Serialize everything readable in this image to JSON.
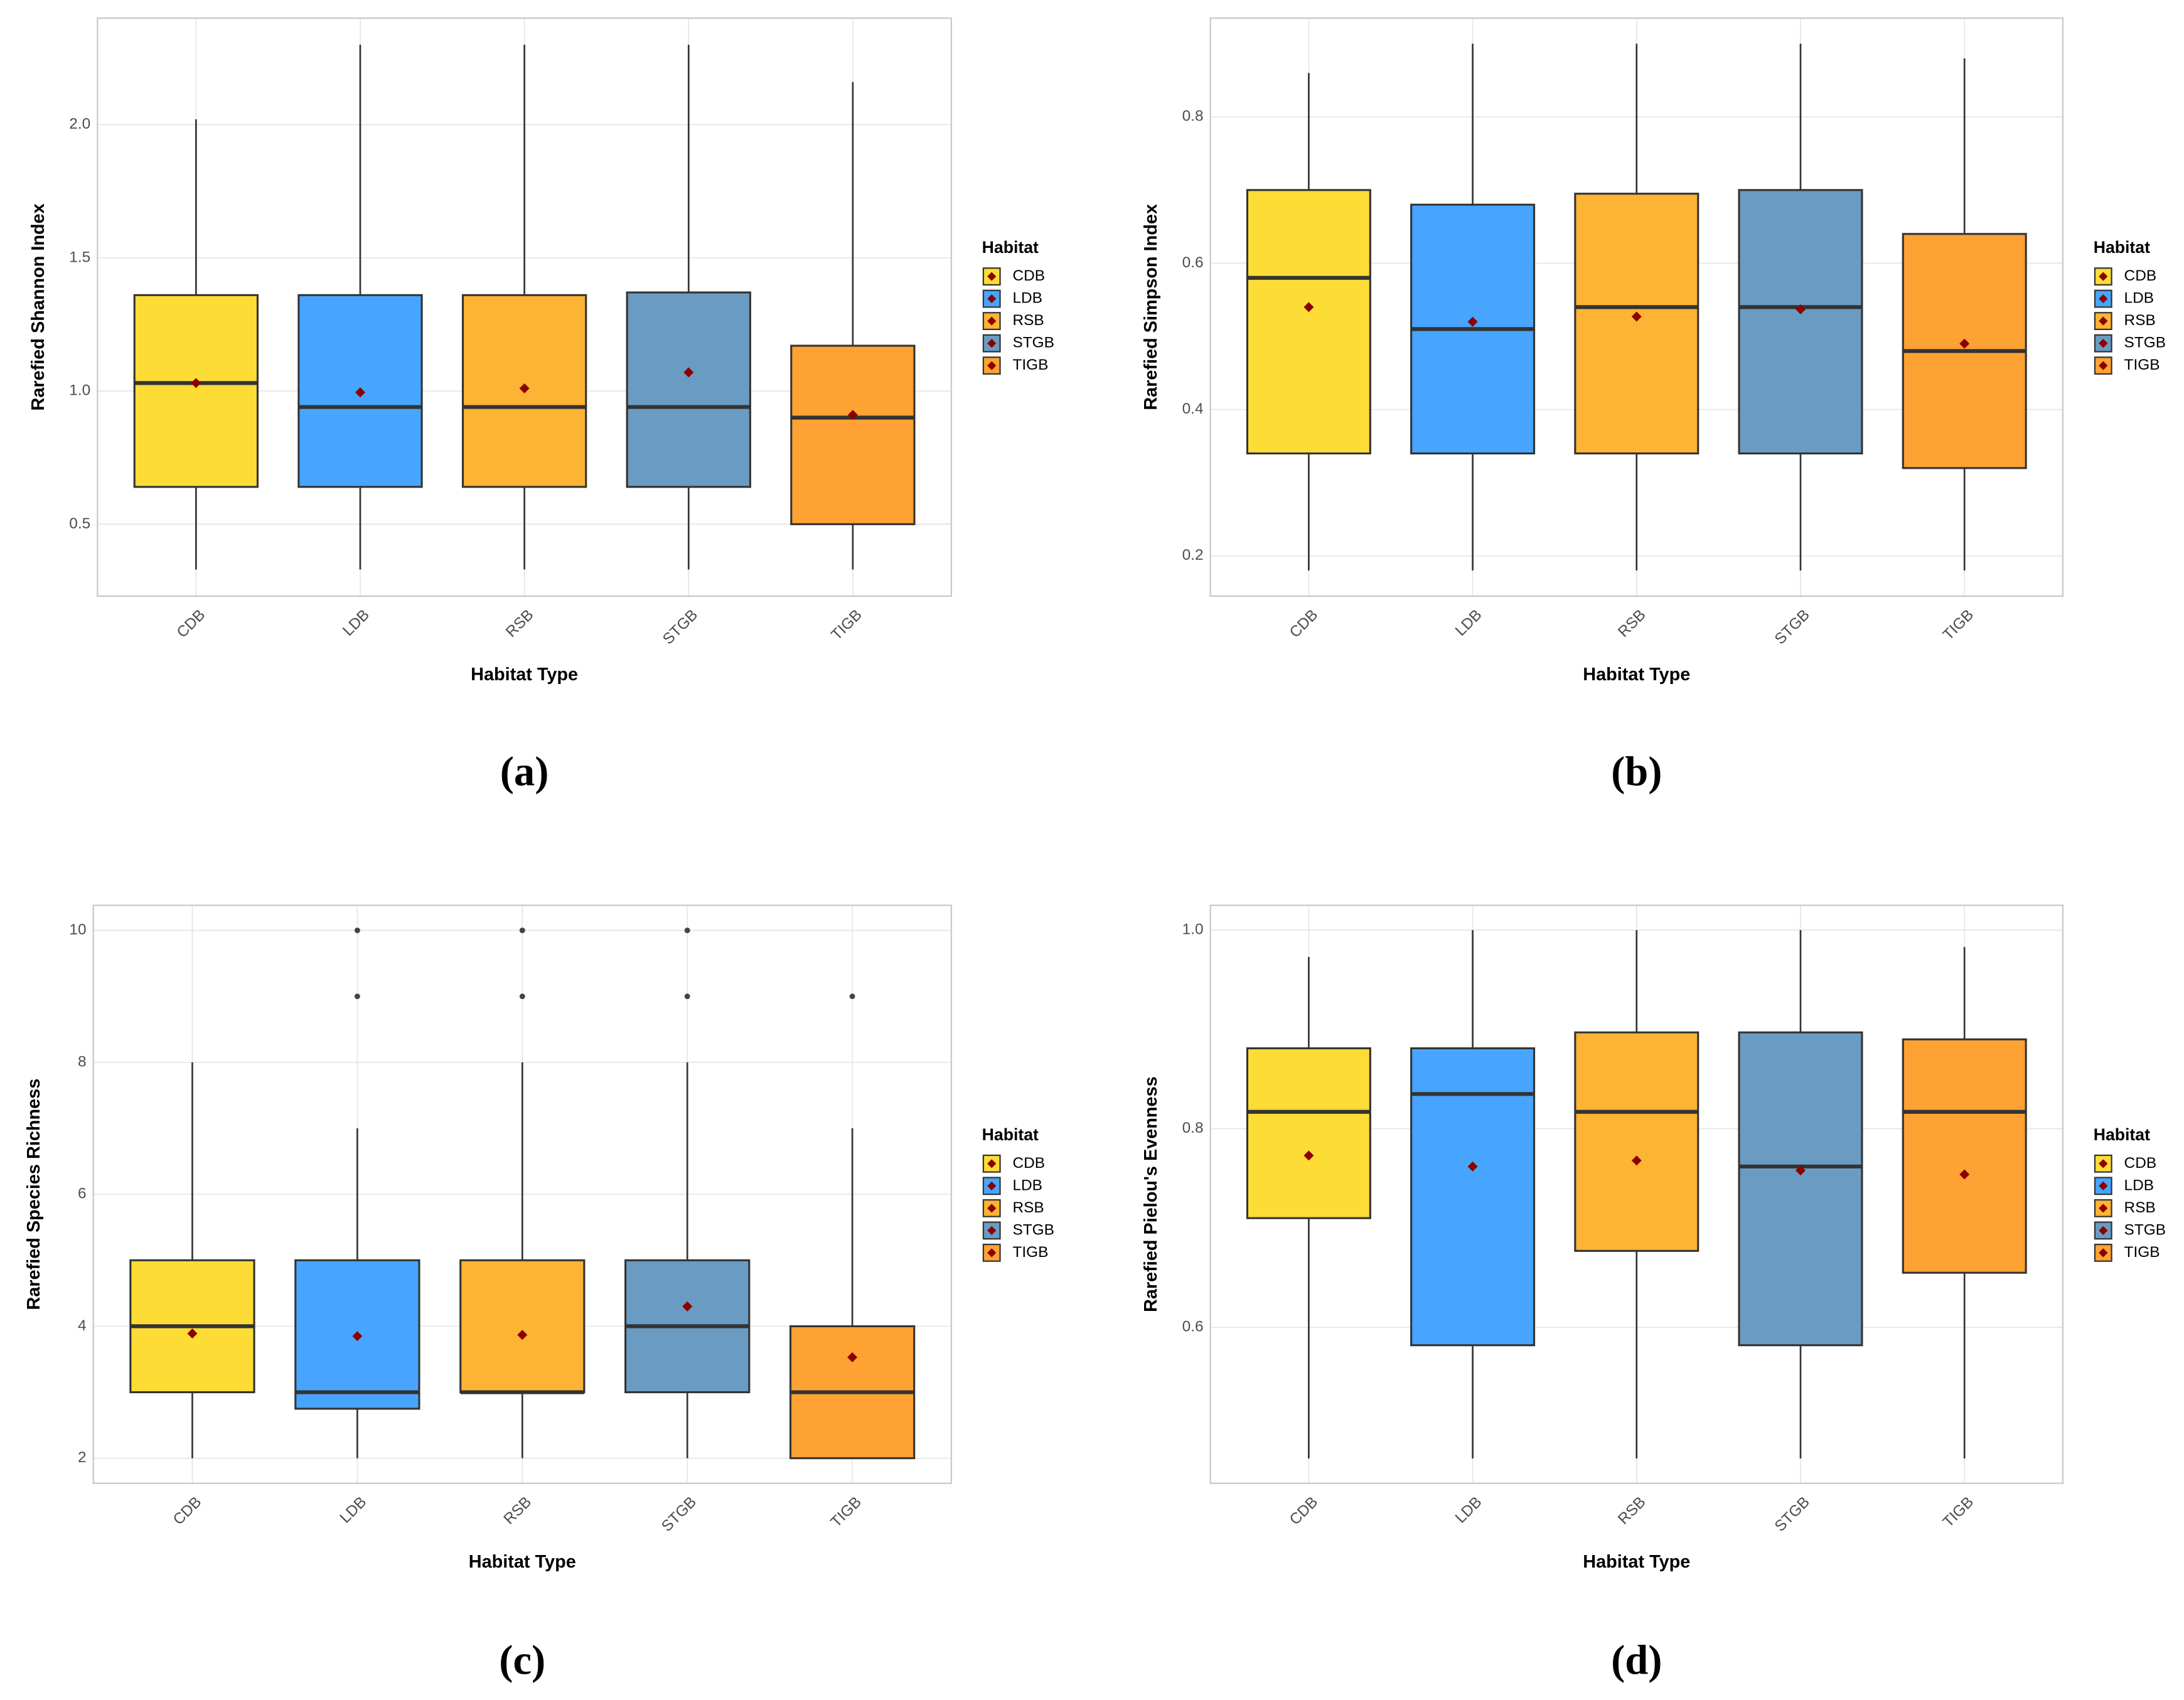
{
  "chart_data": [
    {
      "type": "box",
      "panel_label": "(a)",
      "xlabel": "Habitat Type",
      "ylabel": "Rarefied Shannon Index",
      "legend_title": "Habitat",
      "categories": [
        "CDB",
        "LDB",
        "RSB",
        "STGB",
        "TIGB"
      ],
      "colors": [
        "#fddc36",
        "#47a5ff",
        "#fdb333",
        "#6a9bc3",
        "#fda233"
      ],
      "whisker_low": [
        0.33,
        0.33,
        0.33,
        0.33,
        0.33
      ],
      "q1": [
        0.64,
        0.64,
        0.64,
        0.64,
        0.5
      ],
      "median": [
        1.03,
        0.94,
        0.94,
        0.94,
        0.9
      ],
      "q3": [
        1.36,
        1.36,
        1.36,
        1.37,
        1.17
      ],
      "whisker_high": [
        2.02,
        2.3,
        2.3,
        2.3,
        2.16
      ],
      "mean": [
        1.03,
        0.995,
        1.01,
        1.07,
        0.91
      ],
      "outliers": [
        [],
        [],
        [],
        [],
        []
      ],
      "ylim": [
        0.23,
        2.4
      ],
      "yticks": [
        0.5,
        {
          "value": 1,
          "label": "1.0"
        },
        1.5,
        {
          "value": 2,
          "label": "2.0"
        }
      ],
      "grid": true
    },
    {
      "type": "box",
      "panel_label": "(b)",
      "xlabel": "Habitat Type",
      "ylabel": "Rarefied Simpson Index",
      "legend_title": "Habitat",
      "categories": [
        "CDB",
        "LDB",
        "RSB",
        "STGB",
        "TIGB"
      ],
      "colors": [
        "#fddc36",
        "#47a5ff",
        "#fdb333",
        "#6a9bc3",
        "#fda233"
      ],
      "whisker_low": [
        0.18,
        0.18,
        0.18,
        0.18,
        0.18
      ],
      "q1": [
        0.34,
        0.34,
        0.34,
        0.34,
        0.32
      ],
      "median": [
        0.58,
        0.51,
        0.54,
        0.54,
        0.48
      ],
      "q3": [
        0.7,
        0.68,
        0.695,
        0.7,
        0.64
      ],
      "whisker_high": [
        0.86,
        0.9,
        0.9,
        0.9,
        0.88
      ],
      "mean": [
        0.54,
        0.52,
        0.527,
        0.537,
        0.49
      ],
      "outliers": [
        [],
        [],
        [],
        [],
        []
      ],
      "ylim": [
        0.145,
        0.935
      ],
      "yticks": [
        0.2,
        0.4,
        0.6,
        0.8
      ],
      "grid": true
    },
    {
      "type": "box",
      "panel_label": "(c)",
      "xlabel": "Habitat Type",
      "ylabel": "Rarefied Species Richness",
      "legend_title": "Habitat",
      "categories": [
        "CDB",
        "LDB",
        "RSB",
        "STGB",
        "TIGB"
      ],
      "colors": [
        "#fddc36",
        "#47a5ff",
        "#fdb333",
        "#6a9bc3",
        "#fda233"
      ],
      "whisker_low": [
        2,
        2,
        2,
        2,
        2
      ],
      "q1": [
        3,
        2.75,
        3,
        3,
        2
      ],
      "median": [
        4,
        3,
        3,
        4,
        3
      ],
      "q3": [
        5,
        5,
        5,
        5,
        4
      ],
      "whisker_high": [
        8,
        7,
        8,
        8,
        7
      ],
      "mean": [
        3.89,
        3.85,
        3.87,
        4.3,
        3.53
      ],
      "outliers": [
        [],
        [
          9,
          10
        ],
        [
          9,
          10
        ],
        [
          9,
          10
        ],
        [
          9
        ]
      ],
      "ylim": [
        1.62,
        10.38
      ],
      "yticks": [
        2,
        4,
        6,
        8,
        10
      ],
      "grid": true
    },
    {
      "type": "box",
      "panel_label": "(d)",
      "xlabel": "Habitat Type",
      "ylabel": "Rarefied Pielou's Evenness",
      "legend_title": "Habitat",
      "categories": [
        "CDB",
        "LDB",
        "RSB",
        "STGB",
        "TIGB"
      ],
      "colors": [
        "#fddc36",
        "#47a5ff",
        "#fdb333",
        "#6a9bc3",
        "#fda233"
      ],
      "whisker_low": [
        0.468,
        0.468,
        0.468,
        0.468,
        0.468
      ],
      "q1": [
        0.71,
        0.582,
        0.677,
        0.582,
        0.655
      ],
      "median": [
        0.817,
        0.835,
        0.817,
        0.762,
        0.817
      ],
      "q3": [
        0.881,
        0.881,
        0.897,
        0.897,
        0.89
      ],
      "whisker_high": [
        0.973,
        1.0,
        1.0,
        1.0,
        0.983
      ],
      "mean": [
        0.773,
        0.762,
        0.768,
        0.758,
        0.754
      ],
      "outliers": [
        [],
        [],
        [],
        [],
        []
      ],
      "ylim": [
        0.443,
        1.025
      ],
      "yticks": [
        0.6,
        0.8,
        {
          "value": 1,
          "label": "1.0"
        }
      ],
      "grid": true
    }
  ]
}
